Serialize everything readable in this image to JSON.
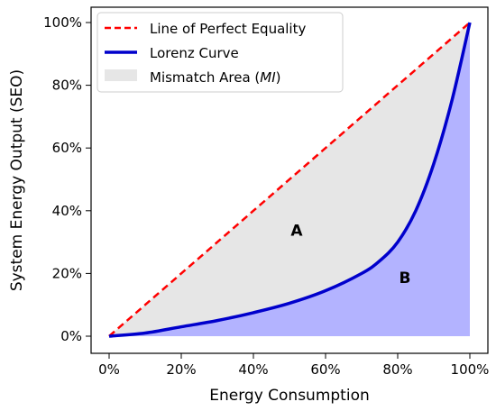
{
  "chart_data": {
    "type": "area",
    "xlabel": "Energy Consumption",
    "ylabel": "System Energy Output (SEO)",
    "xlim": [
      0,
      100
    ],
    "ylim": [
      0,
      100
    ],
    "x_ticks": [
      "0%",
      "20%",
      "40%",
      "60%",
      "80%",
      "100%"
    ],
    "y_ticks": [
      "0%",
      "20%",
      "40%",
      "60%",
      "80%",
      "100%"
    ],
    "grid": false,
    "legend_position": "top-left",
    "series": [
      {
        "name": "Line of Perfect Equality",
        "style": "dashed",
        "color": "#ff0000",
        "x": [
          0,
          100
        ],
        "y": [
          0,
          100
        ]
      },
      {
        "name": "Lorenz Curve",
        "style": "solid",
        "color": "#0000cc",
        "x": [
          0,
          10,
          20,
          30,
          40,
          50,
          60,
          70,
          75,
          80,
          85,
          90,
          95,
          100
        ],
        "y": [
          0,
          1,
          3,
          5,
          7.5,
          10.5,
          14.5,
          20,
          24,
          30,
          40,
          55,
          75,
          100
        ]
      }
    ],
    "areas": [
      {
        "name": "Mismatch Area (MI)",
        "legend_text": "Mismatch Area (",
        "legend_italic": "MI",
        "legend_close": ")",
        "color": "#e6e6e6",
        "between": [
          "Line of Perfect Equality",
          "Lorenz Curve"
        ]
      },
      {
        "color": "#b3b3ff",
        "under": "Lorenz Curve"
      }
    ],
    "annotations": [
      {
        "text": "A",
        "x": 52,
        "y": 32
      },
      {
        "text": "B",
        "x": 82,
        "y": 17
      }
    ]
  }
}
